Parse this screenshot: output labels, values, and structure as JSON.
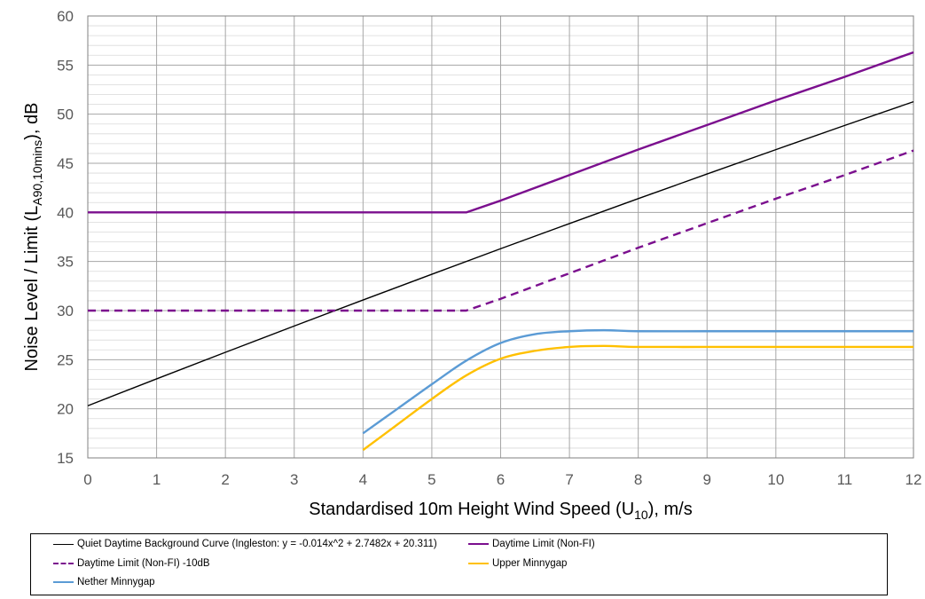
{
  "chart_data": {
    "type": "line",
    "xlabel": {
      "main": "Standardised 10m Height Wind Speed (U",
      "sub": "10",
      "end": "), m/s"
    },
    "ylabel": {
      "main": "Noise Level / Limit (L",
      "sub": "A90,10mins",
      "end": "), dB"
    },
    "xlim": [
      0,
      12
    ],
    "ylim": [
      15,
      60
    ],
    "xticks": [
      "0",
      "1",
      "2",
      "3",
      "4",
      "5",
      "6",
      "7",
      "8",
      "9",
      "10",
      "11",
      "12"
    ],
    "yticks": [
      "15",
      "20",
      "25",
      "30",
      "35",
      "40",
      "45",
      "50",
      "55",
      "60"
    ],
    "grid": {
      "major_x": 1,
      "major_y": 5,
      "minor_y": 1
    },
    "legend_position": "bottom",
    "series": [
      {
        "name": "Quiet Daytime Background Curve (Ingleston: y = -0.014x^2 + 2.7482x + 20.311)",
        "color": "#000000",
        "style": "solid",
        "x": [
          0,
          1,
          2,
          3,
          4,
          5,
          6,
          7,
          8,
          9,
          10,
          11,
          12
        ],
        "y": [
          20.31,
          23.05,
          25.75,
          28.43,
          31.08,
          33.7,
          36.3,
          38.86,
          41.4,
          43.91,
          46.39,
          48.85,
          51.27
        ]
      },
      {
        "name": "Daytime Limit (Non-FI)",
        "color": "#7B0F8E",
        "style": "solid",
        "x": [
          0,
          5.5,
          6,
          7,
          8,
          9,
          10,
          11,
          12
        ],
        "y": [
          40,
          40,
          41.2,
          43.8,
          46.4,
          48.9,
          51.4,
          53.8,
          56.3
        ]
      },
      {
        "name": "Daytime Limit (Non-FI) -10dB",
        "color": "#7B0F8E",
        "style": "dashed",
        "x": [
          0,
          5.5,
          6,
          7,
          8,
          9,
          10,
          11,
          12
        ],
        "y": [
          30,
          30,
          31.2,
          33.8,
          36.4,
          38.9,
          41.4,
          43.8,
          46.3
        ]
      },
      {
        "name": "Upper Minnygap",
        "color": "#FFC000",
        "style": "solid",
        "x": [
          4,
          4.5,
          5,
          5.5,
          6,
          6.5,
          7,
          7.5,
          8,
          9,
          10,
          11,
          12
        ],
        "y": [
          15.8,
          18.4,
          21.0,
          23.4,
          25.1,
          25.9,
          26.3,
          26.4,
          26.3,
          26.3,
          26.3,
          26.3,
          26.3
        ]
      },
      {
        "name": "Nether Minnygap",
        "color": "#5B9BD5",
        "style": "solid",
        "x": [
          4,
          4.5,
          5,
          5.5,
          6,
          6.5,
          7,
          7.5,
          8,
          9,
          10,
          11,
          12
        ],
        "y": [
          17.5,
          20.0,
          22.5,
          24.9,
          26.7,
          27.6,
          27.9,
          28.0,
          27.9,
          27.9,
          27.9,
          27.9,
          27.9
        ]
      }
    ]
  }
}
